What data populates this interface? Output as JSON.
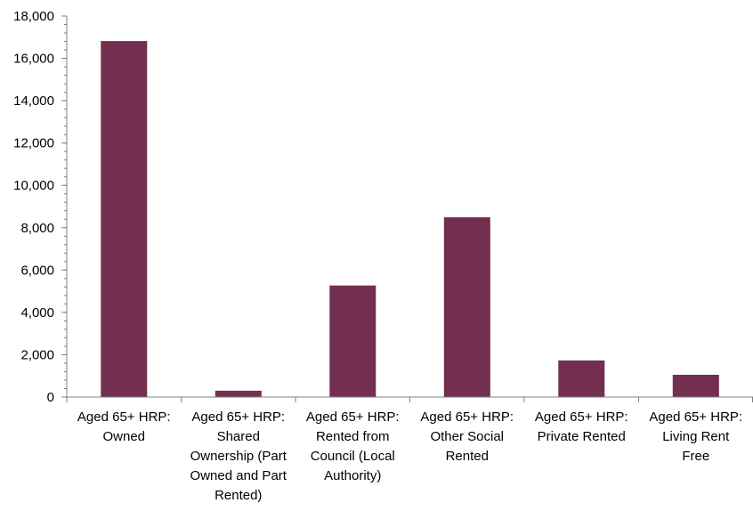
{
  "chart_data": {
    "type": "bar",
    "title": "",
    "xlabel": "",
    "ylabel": "",
    "ylim": [
      0,
      18000
    ],
    "yticks": [
      "0",
      "2,000",
      "4,000",
      "6,000",
      "8,000",
      "10,000",
      "12,000",
      "14,000",
      "16,000",
      "18,000"
    ],
    "grid": false,
    "legend": "none",
    "bar_color": "#722F4F",
    "categories": [
      [
        "Aged 65+ HRP:",
        "Owned"
      ],
      [
        "Aged 65+ HRP:",
        "Shared",
        "Ownership (Part",
        "Owned and Part",
        "Rented)"
      ],
      [
        "Aged 65+ HRP:",
        "Rented from",
        "Council (Local",
        "Authority)"
      ],
      [
        "Aged 65+ HRP:",
        "Other Social",
        "Rented"
      ],
      [
        "Aged 65+ HRP:",
        "Private Rented"
      ],
      [
        "Aged 65+ HRP:",
        "Living Rent",
        "Free"
      ]
    ],
    "values": [
      16820,
      300,
      5270,
      8490,
      1730,
      1050
    ]
  }
}
